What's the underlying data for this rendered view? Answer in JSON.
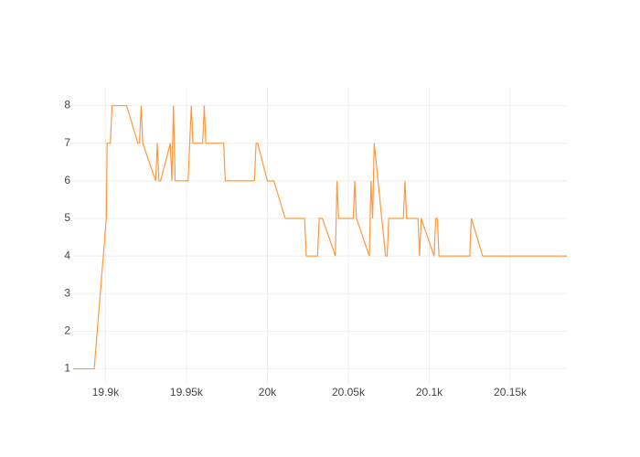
{
  "chart_data": {
    "type": "line",
    "x": [
      19880,
      19893,
      19900.5,
      19901,
      19903,
      19904,
      19913,
      19920,
      19921,
      19922,
      19923,
      19931,
      19932,
      19933,
      19934,
      19940,
      19941,
      19942,
      19943,
      19951,
      19953,
      19954,
      19960,
      19961,
      19962,
      19973,
      19974,
      19992,
      19993,
      19994,
      20000,
      20004,
      20011,
      20023,
      20024,
      20031,
      20032,
      20034,
      20042,
      20043,
      20044,
      20053,
      20054,
      20055,
      20063,
      20064,
      20065,
      20066,
      20073,
      20074,
      20075,
      20084,
      20085,
      20086,
      20093,
      20094,
      20095,
      20103,
      20104,
      20105,
      20106,
      20125,
      20126,
      20133,
      20185
    ],
    "series": [
      {
        "color": "#ff983e",
        "values": [
          1,
          1,
          5,
          7,
          7,
          8,
          8,
          7,
          7,
          8,
          7,
          6,
          7,
          6,
          6,
          7,
          6,
          8,
          6,
          6,
          8,
          7,
          7,
          8,
          7,
          7,
          6,
          6,
          7,
          7,
          6,
          6,
          5,
          5,
          4,
          4,
          5,
          5,
          4,
          6,
          5,
          5,
          6,
          5,
          4,
          6,
          5,
          7,
          4,
          4,
          5,
          5,
          6,
          5,
          5,
          4,
          5,
          4,
          5,
          5,
          4,
          4,
          5,
          4,
          4
        ]
      }
    ],
    "xlim": [
      19880,
      20185
    ],
    "ylim": [
      0.6,
      8.5
    ],
    "xticks": [
      {
        "value": 19900,
        "label": "19.9k"
      },
      {
        "value": 19950,
        "label": "19.95k"
      },
      {
        "value": 20000,
        "label": "20k"
      },
      {
        "value": 20050,
        "label": "20.05k"
      },
      {
        "value": 20100,
        "label": "20.1k"
      },
      {
        "value": 20150,
        "label": "20.15k"
      }
    ],
    "yticks": [
      1,
      2,
      3,
      4,
      5,
      6,
      7,
      8
    ],
    "grid": true
  }
}
